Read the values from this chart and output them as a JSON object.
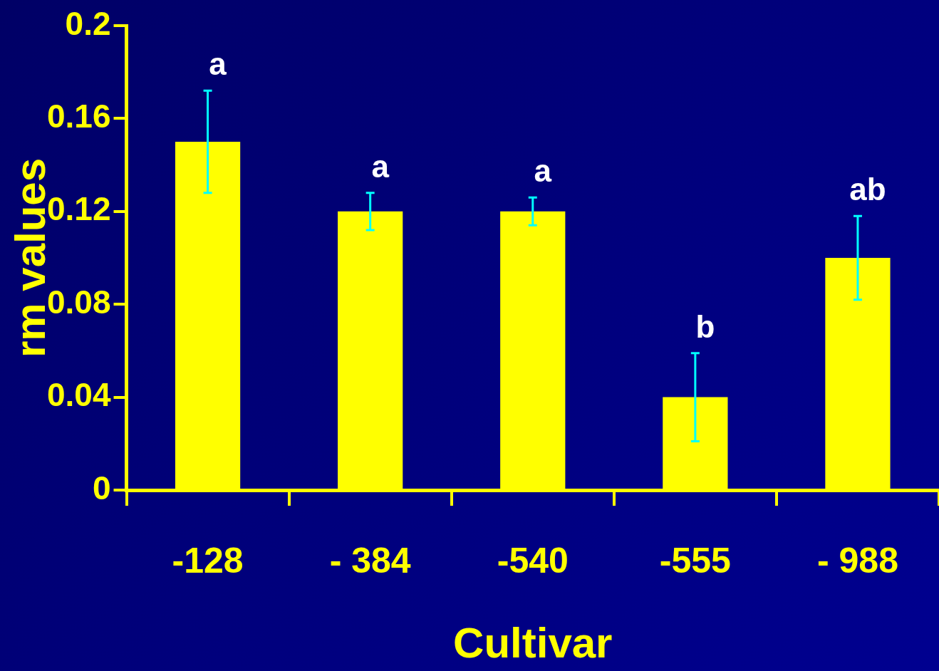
{
  "chart_data": {
    "type": "bar",
    "xlabel": "Cultivar",
    "ylabel": "rm values",
    "categories": [
      "-128",
      "- 384",
      "-540",
      "-555",
      "- 988"
    ],
    "values": [
      0.15,
      0.12,
      0.12,
      0.04,
      0.1
    ],
    "errors": [
      [
        0.128,
        0.172
      ],
      [
        0.112,
        0.128
      ],
      [
        0.114,
        0.126
      ],
      [
        0.021,
        0.059
      ],
      [
        0.082,
        0.118
      ]
    ],
    "color": "#ffff00",
    "ylim": [
      0,
      0.2
    ],
    "yticks": [
      0,
      0.04,
      0.08,
      0.12,
      0.16,
      0.2
    ],
    "grid": false,
    "annotations": [
      "a",
      "a",
      "a",
      "b",
      "ab"
    ]
  }
}
